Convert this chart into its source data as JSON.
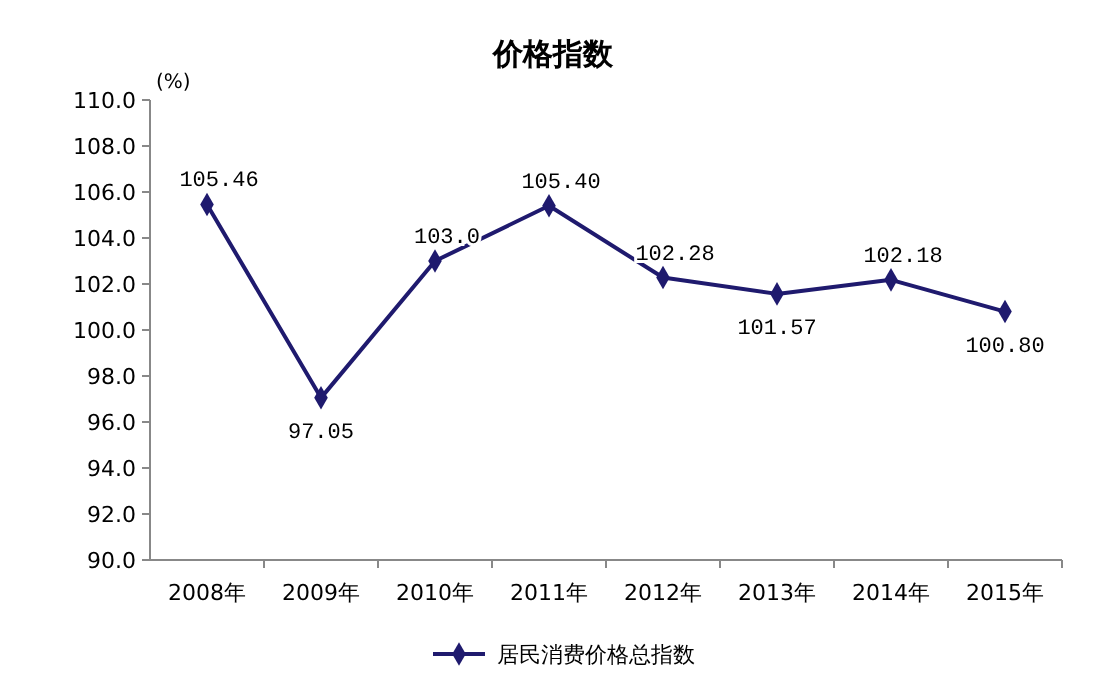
{
  "chart_data": {
    "type": "line",
    "title": "价格指数",
    "ylabel": "(%)",
    "categories": [
      "2008年",
      "2009年",
      "2010年",
      "2011年",
      "2012年",
      "2013年",
      "2014年",
      "2015年"
    ],
    "series": [
      {
        "name": "居民消费价格总指数",
        "color": "#1f1a6e",
        "values": [
          105.46,
          97.05,
          103.0,
          105.4,
          102.28,
          101.57,
          102.18,
          100.8
        ],
        "value_labels": [
          "105.46",
          "97.05",
          "103.0",
          "105.40",
          "102.28",
          "101.57",
          "102.18",
          "100.80"
        ]
      }
    ],
    "ylim": [
      90,
      110
    ],
    "yticks": [
      {
        "value": 90,
        "label": "90.0"
      },
      {
        "value": 92,
        "label": "92.0"
      },
      {
        "value": 94,
        "label": "94.0"
      },
      {
        "value": 96,
        "label": "96.0"
      },
      {
        "value": 98,
        "label": "98.0"
      },
      {
        "value": 100,
        "label": "100.0"
      },
      {
        "value": 102,
        "label": "102.0"
      },
      {
        "value": 104,
        "label": "104.0"
      },
      {
        "value": 106,
        "label": "106.0"
      },
      {
        "value": 108,
        "label": "108.0"
      },
      {
        "value": 110,
        "label": "110.0"
      }
    ],
    "marker": "diamond",
    "legend": "bottom",
    "grid": false
  }
}
